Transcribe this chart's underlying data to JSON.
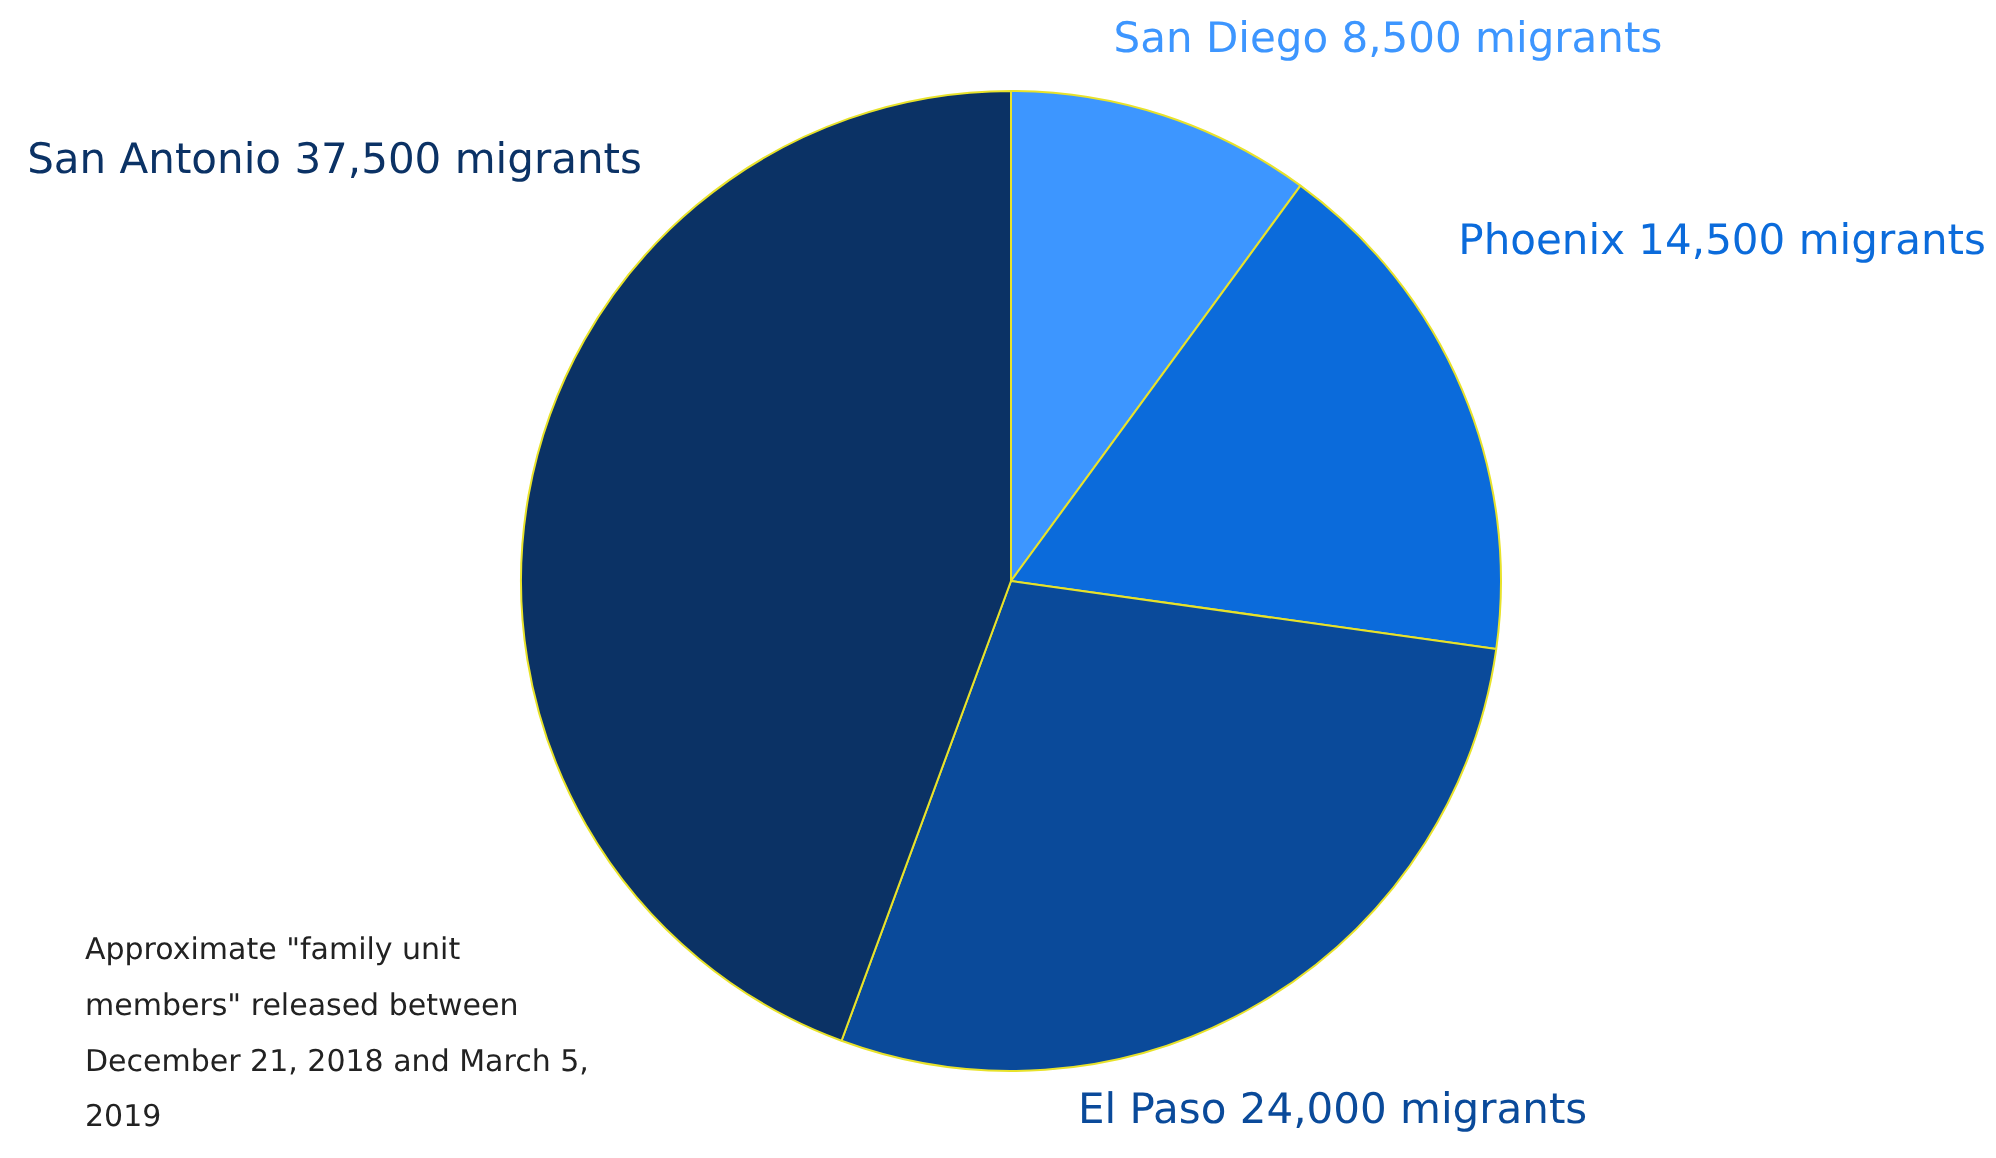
{
  "chart_data": {
    "type": "pie",
    "categories": [
      "San Diego",
      "Phoenix",
      "El Paso",
      "San Antonio"
    ],
    "values": [
      8500,
      14500,
      24000,
      37500
    ],
    "value_labels": [
      "8,500 migrants",
      "14,500 migrants",
      "24,000 migrants",
      "37,500 migrants"
    ],
    "colors": [
      "#3d96ff",
      "#0b6bdb",
      "#0a4a9a",
      "#0b3265"
    ],
    "annotations": [
      "Approximate \"family unit members\" released between December 21, 2018 and March 5, 2019"
    ]
  }
}
